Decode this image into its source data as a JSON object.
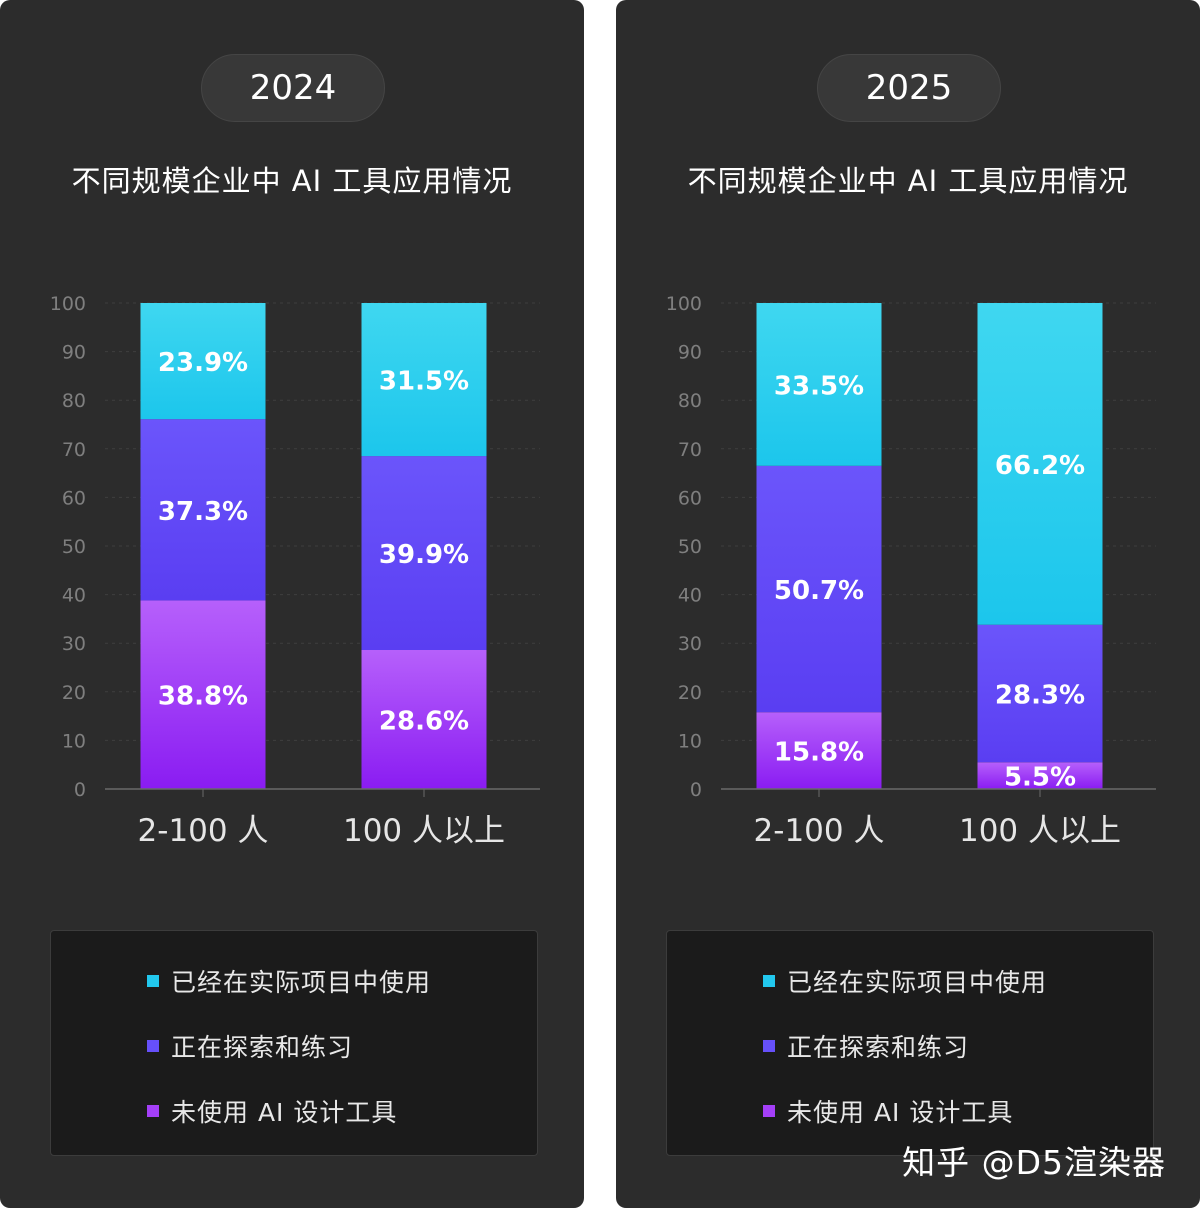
{
  "chart_data": [
    {
      "type": "bar",
      "stacked": true,
      "year_label": "2024",
      "title": "不同规模企业中 AI 工具应用情况",
      "categories": [
        "2-100 人",
        "100 人以上"
      ],
      "ylim": [
        0,
        100
      ],
      "yticks": [
        0,
        10,
        20,
        30,
        40,
        50,
        60,
        70,
        80,
        90,
        100
      ],
      "grid": true,
      "series": [
        {
          "name": "未使用 AI 设计工具",
          "values": [
            38.8,
            28.6
          ],
          "labels": [
            "38.8%",
            "28.6%"
          ]
        },
        {
          "name": "正在探索和练习",
          "values": [
            37.3,
            39.9
          ],
          "labels": [
            "37.3%",
            "39.9%"
          ]
        },
        {
          "name": "已经在实际项目中使用",
          "values": [
            23.9,
            31.5
          ],
          "labels": [
            "23.9%",
            "31.5%"
          ]
        }
      ],
      "legend_position": "bottom"
    },
    {
      "type": "bar",
      "stacked": true,
      "year_label": "2025",
      "title": "不同规模企业中 AI 工具应用情况",
      "categories": [
        "2-100 人",
        "100 人以上"
      ],
      "ylim": [
        0,
        100
      ],
      "yticks": [
        0,
        10,
        20,
        30,
        40,
        50,
        60,
        70,
        80,
        90,
        100
      ],
      "grid": true,
      "series": [
        {
          "name": "未使用 AI 设计工具",
          "values": [
            15.8,
            5.5
          ],
          "labels": [
            "15.8%",
            "5.5%"
          ]
        },
        {
          "name": "正在探索和练习",
          "values": [
            50.7,
            28.3
          ],
          "labels": [
            "50.7%",
            "28.3%"
          ]
        },
        {
          "name": "已经在实际项目中使用",
          "values": [
            33.5,
            66.2
          ],
          "labels": [
            "33.5%",
            "66.2%"
          ]
        }
      ],
      "legend_position": "bottom"
    }
  ],
  "legend": [
    {
      "label": "已经在实际项目中使用",
      "color": "#22c8ee"
    },
    {
      "label": "正在探索和练习",
      "color": "#6650fa"
    },
    {
      "label": "未使用 AI 设计工具",
      "color": "#a43ff8"
    }
  ],
  "colors": {
    "used": [
      "#3fd7f0",
      "#1cc6ec"
    ],
    "exploring": [
      "#6b55fb",
      "#5a3ef2"
    ],
    "not_used": [
      "#b660fb",
      "#8a1cf2"
    ]
  },
  "watermark": "知乎 @D5渲染器"
}
